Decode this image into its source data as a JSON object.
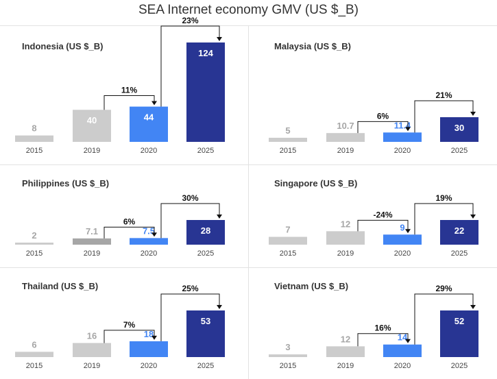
{
  "title": "SEA Internet economy GMV (US $_B)",
  "colors": {
    "2015": "#cccccc",
    "2019": {
      "default": "#cccccc",
      "dark": "#a6a6a6"
    },
    "2020": "#4285f4",
    "2025": "#283593",
    "label_grey": "#a6a6a6",
    "label_blue": "#4285f4",
    "label_white": "#ffffff"
  },
  "chart_data": [
    {
      "type": "bar",
      "title": "Indonesia (US $_B)",
      "categories": [
        "2015",
        "2019",
        "2020",
        "2025"
      ],
      "values": [
        8,
        40,
        44,
        124
      ],
      "value_labels": [
        "8",
        "40",
        "44",
        "124"
      ],
      "growth_labels": [
        "11%",
        "23%"
      ]
    },
    {
      "type": "bar",
      "title": "Malaysia (US $_B)",
      "categories": [
        "2015",
        "2019",
        "2020",
        "2025"
      ],
      "values": [
        5,
        10.7,
        11.4,
        30
      ],
      "value_labels": [
        "5",
        "10.7",
        "11.4",
        "30"
      ],
      "growth_labels": [
        "6%",
        "21%"
      ]
    },
    {
      "type": "bar",
      "title": "Philippines (US $_B)",
      "categories": [
        "2015",
        "2019",
        "2020",
        "2025"
      ],
      "values": [
        2,
        7.1,
        7.5,
        28
      ],
      "value_labels": [
        "2",
        "7.1",
        "7.5",
        "28"
      ],
      "growth_labels": [
        "6%",
        "30%"
      ]
    },
    {
      "type": "bar",
      "title": "Singapore (US $_B)",
      "categories": [
        "2015",
        "2019",
        "2020",
        "2025"
      ],
      "values": [
        7,
        12,
        9,
        22
      ],
      "value_labels": [
        "7",
        "12",
        "9",
        "22"
      ],
      "growth_labels": [
        "-24%",
        "19%"
      ]
    },
    {
      "type": "bar",
      "title": "Thailand (US $_B)",
      "categories": [
        "2015",
        "2019",
        "2020",
        "2025"
      ],
      "values": [
        6,
        16,
        18,
        53
      ],
      "value_labels": [
        "6",
        "16",
        "18",
        "53"
      ],
      "growth_labels": [
        "7%",
        "25%"
      ]
    },
    {
      "type": "bar",
      "title": "Vietnam (US $_B)",
      "categories": [
        "2015",
        "2019",
        "2020",
        "2025"
      ],
      "values": [
        3,
        12,
        14,
        52
      ],
      "value_labels": [
        "3",
        "12",
        "14",
        "52"
      ],
      "growth_labels": [
        "16%",
        "29%"
      ]
    }
  ]
}
